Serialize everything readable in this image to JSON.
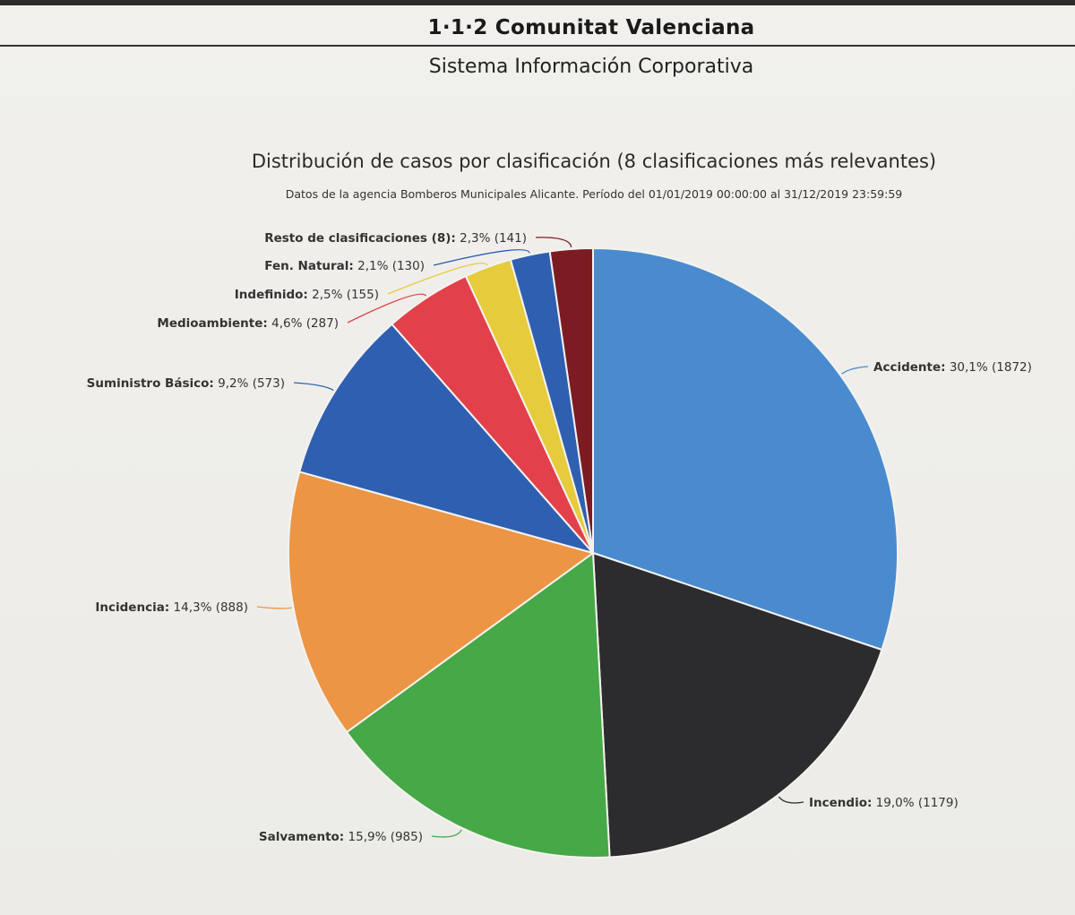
{
  "header": {
    "organization": "1·1·2 Comunitat Valenciana",
    "system": "Sistema Información Corporativa"
  },
  "chart_data": {
    "type": "pie",
    "title": "Distribución de casos por clasificación (8 clasificaciones más relevantes)",
    "subtitle": "Datos de la agencia Bomberos Municipales Alicante. Período del 01/01/2019 00:00:00 al 31/12/2019 23:59:59",
    "slices": [
      {
        "name": "Accidente",
        "percent_label": "30,1%",
        "count_label": "(1872)",
        "value": 1872,
        "color": "#4a8bd0"
      },
      {
        "name": "Incendio",
        "percent_label": "19,0%",
        "count_label": "(1179)",
        "value": 1179,
        "color": "#2c2c2e"
      },
      {
        "name": "Salvamento",
        "percent_label": "15,9%",
        "count_label": "(985)",
        "value": 985,
        "color": "#46a846"
      },
      {
        "name": "Incidencia",
        "percent_label": "14,3%",
        "count_label": "(888)",
        "value": 888,
        "color": "#ec9544"
      },
      {
        "name": "Suministro Básico",
        "percent_label": "9,2%",
        "count_label": "(573)",
        "value": 573,
        "color": "#2f5fb0"
      },
      {
        "name": "Medioambiente",
        "percent_label": "4,6%",
        "count_label": "(287)",
        "value": 287,
        "color": "#e2404a"
      },
      {
        "name": "Indefinido",
        "percent_label": "2,5%",
        "count_label": "(155)",
        "value": 155,
        "color": "#e6cb3c"
      },
      {
        "name": "Fen. Natural",
        "percent_label": "2,1%",
        "count_label": "(130)",
        "value": 130,
        "color": "#2f5fb0"
      },
      {
        "name": "Resto de clasificaciones (8)",
        "percent_label": "2,3%",
        "count_label": "(141)",
        "value": 141,
        "color": "#7b1c22"
      }
    ]
  }
}
